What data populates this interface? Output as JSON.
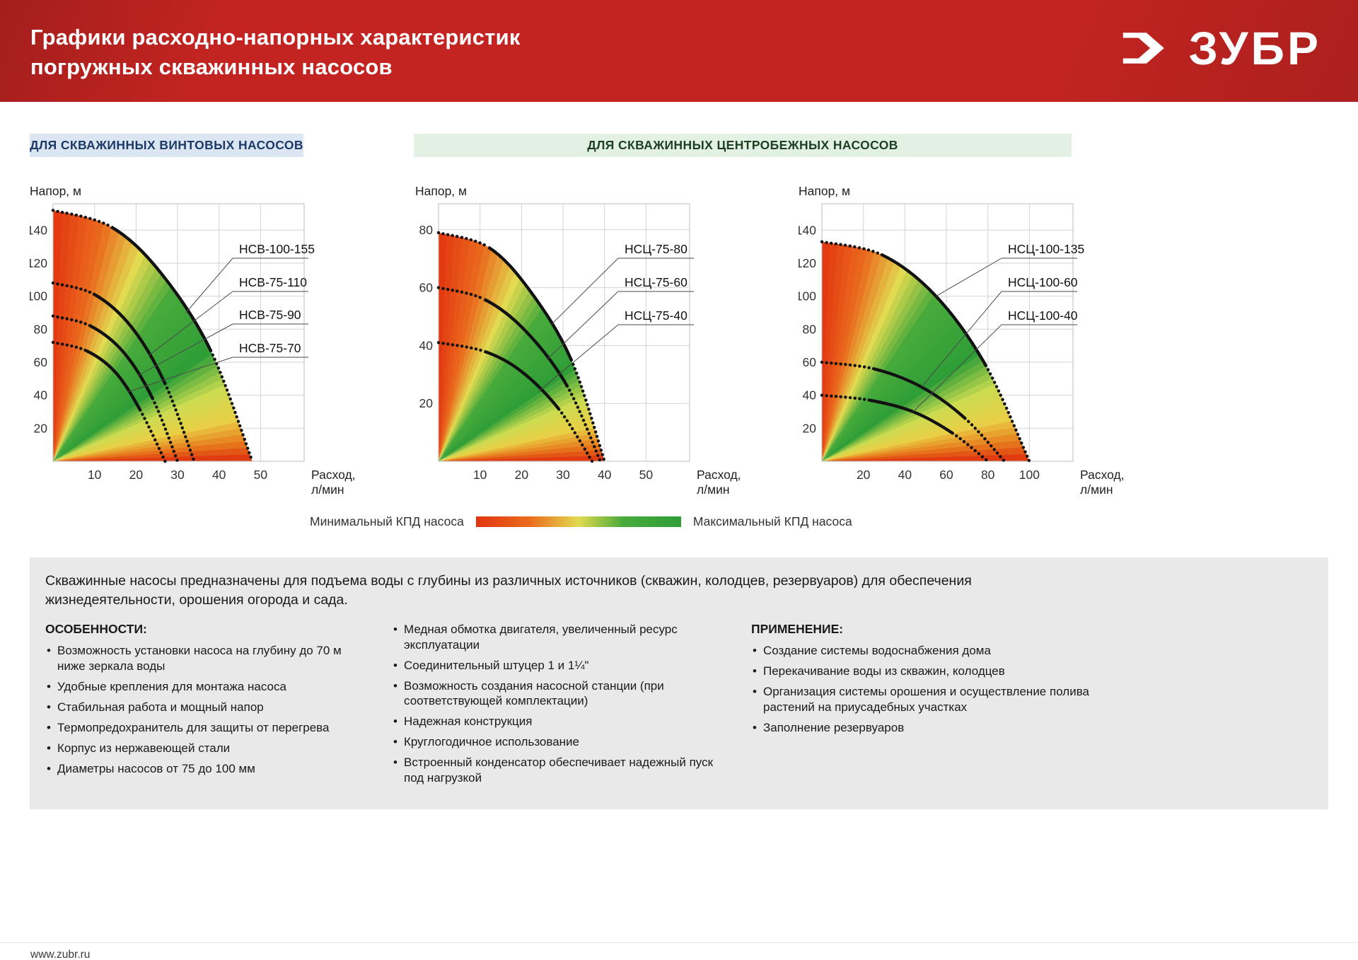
{
  "header": {
    "title_line1": "Графики расходно-напорных характеристик",
    "title_line2": "погружных скважинных насосов",
    "brand": "ЗУБР"
  },
  "sections": [
    {
      "label": "ДЛЯ СКВАЖИННЫХ ВИНТОВЫХ НАСОСОВ",
      "background": "#dce6f3"
    },
    {
      "label": "ДЛЯ СКВАЖИННЫХ ЦЕНТРОБЕЖНЫХ НАСОСОВ",
      "background": "#e2f1e3"
    }
  ],
  "efficiency_stops": [
    {
      "angle": 0,
      "color": "#e23511"
    },
    {
      "angle": 12,
      "color": "#ea6b1d"
    },
    {
      "angle": 23,
      "color": "#e2da50"
    },
    {
      "angle": 35,
      "color": "#47aa3b"
    },
    {
      "angle": 55,
      "color": "#2f9e37"
    },
    {
      "angle": 67,
      "color": "#ccdb50"
    },
    {
      "angle": 77,
      "color": "#e9cf45"
    },
    {
      "angle": 84,
      "color": "#e8801e"
    },
    {
      "angle": 90,
      "color": "#de2d0e"
    }
  ],
  "chart_data": [
    {
      "type": "line",
      "title": "ДЛЯ СКВАЖИННЫХ ВИНТОВЫХ НАСОСОВ",
      "ylabel": "Напор, м",
      "xlabel": "Расход, л/мин",
      "xticks": [
        10,
        20,
        30,
        40,
        50
      ],
      "yticks": [
        20,
        40,
        60,
        80,
        100,
        120,
        140
      ],
      "xlim": [
        0,
        60.5
      ],
      "ylim": [
        0,
        156
      ],
      "grid": true,
      "series": [
        {
          "name": "НСВ-100-155",
          "points": [
            [
              0,
              152
            ],
            [
              14,
              142
            ],
            [
              26,
              114
            ],
            [
              38,
              67
            ],
            [
              48,
              0
            ]
          ]
        },
        {
          "name": "НСВ-75-110",
          "points": [
            [
              0,
              108
            ],
            [
              10,
              101
            ],
            [
              19,
              81
            ],
            [
              27,
              47
            ],
            [
              34,
              0
            ]
          ]
        },
        {
          "name": "НСВ-75-90",
          "points": [
            [
              0,
              88
            ],
            [
              9,
              82
            ],
            [
              17,
              66
            ],
            [
              24,
              38
            ],
            [
              30,
              0
            ]
          ]
        },
        {
          "name": "НСВ-75-70",
          "points": [
            [
              0,
              72
            ],
            [
              8,
              67
            ],
            [
              15,
              54
            ],
            [
              21,
              31
            ],
            [
              27,
              0
            ]
          ]
        }
      ]
    },
    {
      "type": "line",
      "title": "ДЛЯ СКВАЖИННЫХ ЦЕНТРОБЕЖНЫХ НАСОСОВ",
      "ylabel": "Напор, м",
      "xlabel": "Расход, л/мин",
      "xticks": [
        10,
        20,
        30,
        40,
        50
      ],
      "yticks": [
        20,
        40,
        60,
        80
      ],
      "xlim": [
        0,
        60.5
      ],
      "ylim": [
        0,
        89
      ],
      "grid": true,
      "series": [
        {
          "name": "НСЦ-75-80",
          "points": [
            [
              0,
              79
            ],
            [
              12,
              74
            ],
            [
              22,
              59
            ],
            [
              32,
              35
            ],
            [
              40,
              0
            ]
          ]
        },
        {
          "name": "НСЦ-75-60",
          "points": [
            [
              0,
              60
            ],
            [
              11,
              56
            ],
            [
              21,
              45
            ],
            [
              31,
              26
            ],
            [
              39,
              0
            ]
          ]
        },
        {
          "name": "НСЦ-75-40",
          "points": [
            [
              0,
              41
            ],
            [
              11,
              38
            ],
            [
              20,
              31
            ],
            [
              29,
              18
            ],
            [
              37,
              0
            ]
          ]
        }
      ]
    },
    {
      "type": "line",
      "title": "ДЛЯ СКВАЖИННЫХ ЦЕНТРОБЕЖНЫХ НАСОСОВ",
      "ylabel": "Напор, м",
      "xlabel": "Расход, л/мин",
      "xticks": [
        20,
        40,
        60,
        80,
        100
      ],
      "yticks": [
        20,
        40,
        60,
        80,
        100,
        120,
        140
      ],
      "xlim": [
        0,
        121
      ],
      "ylim": [
        0,
        156
      ],
      "grid": true,
      "series": [
        {
          "name": "НСЦ-100-135",
          "points": [
            [
              0,
              133
            ],
            [
              29,
              125
            ],
            [
              55,
              100
            ],
            [
              79,
              58
            ],
            [
              100,
              0
            ]
          ]
        },
        {
          "name": "НСЦ-100-60",
          "points": [
            [
              0,
              60
            ],
            [
              25,
              56
            ],
            [
              48,
              45
            ],
            [
              69,
              26
            ],
            [
              88,
              0
            ]
          ]
        },
        {
          "name": "НСЦ-100-40",
          "points": [
            [
              0,
              40
            ],
            [
              23,
              37
            ],
            [
              44,
              30
            ],
            [
              63,
              17
            ],
            [
              80,
              0
            ]
          ]
        }
      ]
    }
  ],
  "legend": {
    "min_label": "Минимальный КПД насоса",
    "max_label": "Максимальный КПД насоса"
  },
  "info": {
    "intro": "Скважинные насосы предназначены для подъема воды с глубины из различных источников (скважин, колодцев, резервуаров) для обеспечения жизнедеятельности, орошения огорода и сада.",
    "features": {
      "title": "ОСОБЕННОСТИ:",
      "items": [
        "Возможность установки насоса на глубину до 70 м ниже зеркала воды",
        "Удобные крепления для монтажа насоса",
        "Стабильная работа и мощный напор",
        "Термопредохранитель для защиты от перегрева",
        "Корпус из нержавеющей стали",
        "Диаметры насосов от 75 до 100 мм"
      ]
    },
    "extra_features": {
      "items": [
        "Медная обмотка двигателя, увеличенный ресурс эксплуатации",
        "Соединительный штуцер 1 и 1¼\"",
        "Возможность создания насосной станции (при соответствующей комплектации)",
        "Надежная конструкция",
        "Круглогодичное использование",
        "Встроенный конденсатор обеспечивает надежный пуск под нагрузкой"
      ]
    },
    "application": {
      "title": "ПРИМЕНЕНИЕ:",
      "items": [
        "Создание системы водоснабжения дома",
        "Перекачивание воды из скважин, колодцев",
        "Организация системы орошения и осуществление полива растений на приусадебных участках",
        "Заполнение резервуаров"
      ]
    }
  },
  "footer": {
    "url": "www.zubr.ru"
  }
}
